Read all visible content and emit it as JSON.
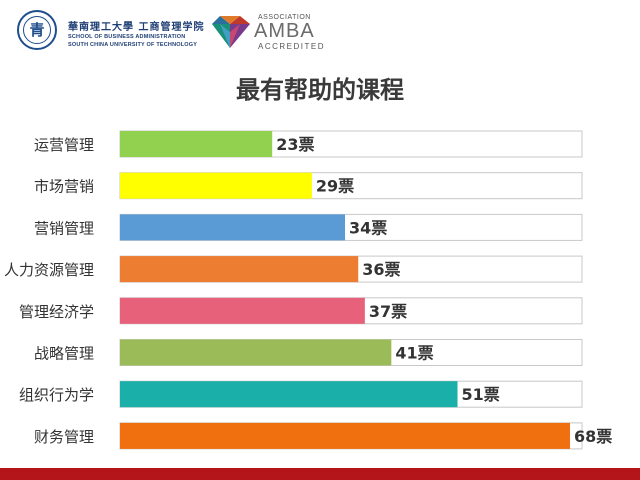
{
  "header": {
    "school_cn": "華南理工大學 工商管理学院",
    "school_en_line1": "SCHOOL OF BUSINESS ADMINISTRATION",
    "school_en_line2": "SOUTH CHINA UNIVERSITY OF TECHNOLOGY",
    "amba_association": "ASSOCIATION",
    "amba_name": "AMBA",
    "amba_accredited": "ACCREDITED"
  },
  "chart_data": {
    "type": "bar",
    "orientation": "horizontal",
    "title": "最有帮助的课程",
    "categories": [
      "运营管理",
      "市场营销",
      "营销管理",
      "人力资源管理",
      "管理经济学",
      "战略管理",
      "组织行为学",
      "财务管理"
    ],
    "values": [
      23,
      29,
      34,
      36,
      37,
      41,
      51,
      68
    ],
    "value_labels": [
      "23票",
      "29票",
      "34票",
      "36票",
      "37票",
      "41票",
      "51票",
      "68票"
    ],
    "colors": [
      "#92d050",
      "#ffff00",
      "#5b9bd5",
      "#ed7d31",
      "#e8617a",
      "#9bbb59",
      "#1aafa8",
      "#f07010"
    ],
    "xlim": [
      0,
      70
    ],
    "grid": false,
    "legend": "none"
  }
}
